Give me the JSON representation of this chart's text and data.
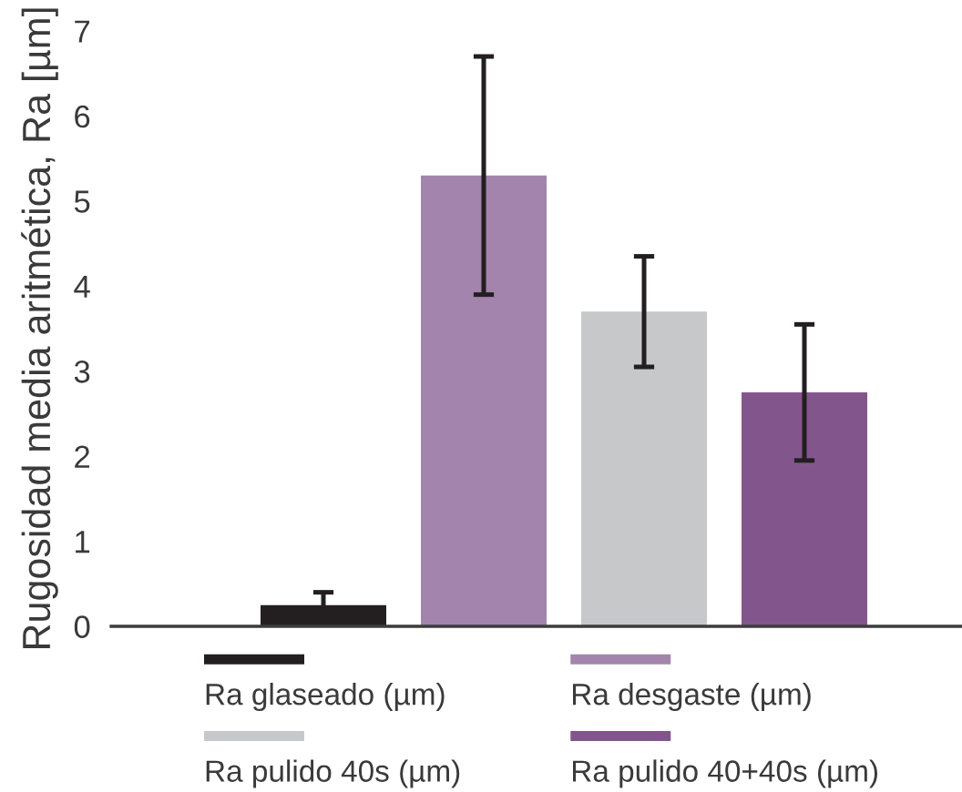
{
  "chart_data": {
    "type": "bar",
    "ylabel": "Rugosidad media aritmética, Ra [µm]",
    "categories": [
      null
    ],
    "series": [
      {
        "name": "Ra glaseado (µm)",
        "color": "#231f20",
        "values": [
          0.25
        ],
        "errors": [
          0.15
        ]
      },
      {
        "name": "Ra desgaste (µm)",
        "color": "#a384ad",
        "values": [
          5.3
        ],
        "errors": [
          1.4
        ]
      },
      {
        "name": "Ra pulido 40s (µm)",
        "color": "#c7c8ca",
        "values": [
          3.7
        ],
        "errors": [
          0.65
        ]
      },
      {
        "name": "Ra pulido 40+40s (µm)",
        "color": "#82568d",
        "values": [
          2.75
        ],
        "errors": [
          0.8
        ]
      }
    ],
    "ylim": [
      0,
      7
    ],
    "yticks": [
      0,
      1,
      2,
      3,
      4,
      5,
      6,
      7
    ],
    "legend": "bottom",
    "tick_labels": "y"
  }
}
